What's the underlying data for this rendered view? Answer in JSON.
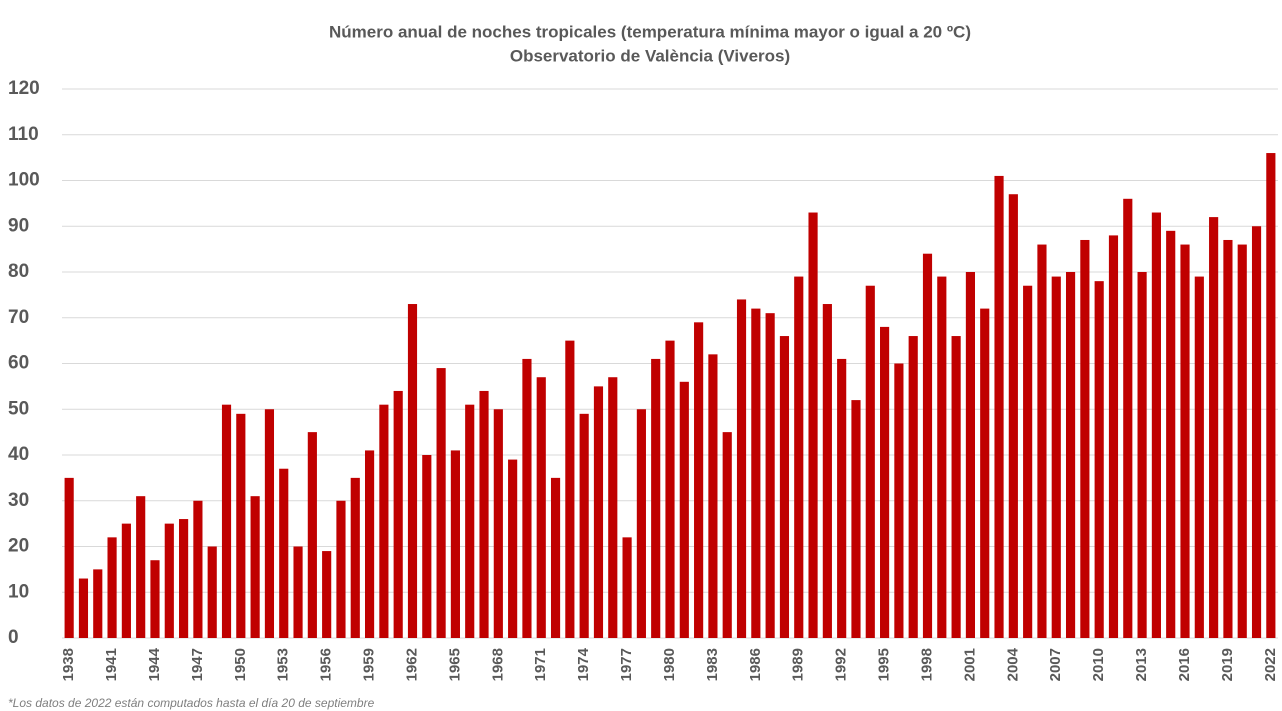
{
  "chart_data": {
    "type": "bar",
    "title": "Número anual de noches tropicales (temperatura mínima mayor o igual a 20 ºC)",
    "subtitle": "Observatorio de València (Viveros)",
    "footnote": "*Los datos de 2022 están computados  hasta  el día 20 de septiembre",
    "categories": [
      "1938",
      null,
      null,
      "1941",
      null,
      null,
      "1944",
      null,
      null,
      "1947",
      null,
      null,
      "1950",
      null,
      null,
      "1953",
      null,
      null,
      "1956",
      null,
      null,
      "1959",
      null,
      null,
      "1962",
      null,
      null,
      "1965",
      null,
      null,
      "1968",
      null,
      null,
      "1971",
      null,
      null,
      "1974",
      null,
      null,
      "1977",
      null,
      null,
      "1980",
      null,
      null,
      "1983",
      null,
      null,
      "1986",
      null,
      null,
      "1989",
      null,
      null,
      "1992",
      null,
      null,
      "1995",
      null,
      null,
      "1998",
      null,
      null,
      "2001",
      null,
      null,
      "2004",
      null,
      null,
      "2007",
      null,
      null,
      "2010",
      null,
      null,
      "2013",
      null,
      null,
      "2016",
      null,
      null,
      "2019",
      null,
      null,
      "2022"
    ],
    "values": [
      35,
      13,
      15,
      22,
      25,
      31,
      17,
      25,
      26,
      30,
      20,
      51,
      49,
      31,
      50,
      37,
      20,
      45,
      19,
      30,
      35,
      41,
      51,
      54,
      73,
      40,
      59,
      41,
      51,
      54,
      50,
      39,
      61,
      57,
      35,
      65,
      49,
      55,
      57,
      22,
      50,
      61,
      65,
      56,
      69,
      62,
      45,
      74,
      72,
      71,
      66,
      79,
      93,
      73,
      61,
      52,
      77,
      68,
      60,
      66,
      84,
      79,
      66,
      80,
      72,
      101,
      97,
      77,
      86,
      79,
      80,
      87,
      78,
      88,
      96,
      80,
      93,
      89,
      86,
      79,
      92,
      87,
      86,
      90,
      106
    ],
    "color": "#c00000",
    "ylim": [
      0,
      120
    ],
    "yticks": [
      0,
      10,
      20,
      30,
      40,
      50,
      60,
      70,
      80,
      90,
      100,
      110,
      120
    ],
    "grid": true
  }
}
